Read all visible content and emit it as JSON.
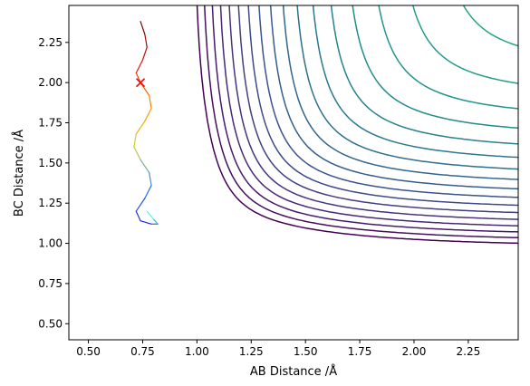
{
  "chart_data": {
    "type": "contour",
    "title": "",
    "xlabel": "AB Distance /Å",
    "ylabel": "BC Distance /Å",
    "xlim": [
      0.41,
      2.48
    ],
    "ylim": [
      0.4,
      2.48
    ],
    "xticks": [
      0.5,
      0.75,
      1.0,
      1.25,
      1.5,
      1.75,
      2.0,
      2.25
    ],
    "xtick_labels": [
      "0.50",
      "0.75",
      "1.00",
      "1.25",
      "1.50",
      "1.75",
      "2.00",
      "2.25"
    ],
    "yticks": [
      0.5,
      0.75,
      1.0,
      1.25,
      1.5,
      1.75,
      2.0,
      2.25
    ],
    "ytick_labels": [
      "0.50",
      "0.75",
      "1.00",
      "1.25",
      "1.50",
      "1.75",
      "2.00",
      "2.25"
    ],
    "grid": false,
    "colormap": "viridis",
    "contour_levels": 28,
    "start_marker": {
      "x": 0.74,
      "y": 2.0,
      "symbol": "x",
      "color": "#ff0000"
    },
    "trajectory": {
      "colormap": "rainbow",
      "points": [
        [
          0.74,
          2.38
        ],
        [
          0.76,
          2.3
        ],
        [
          0.77,
          2.22
        ],
        [
          0.75,
          2.14
        ],
        [
          0.72,
          2.06
        ],
        [
          0.74,
          2.0
        ],
        [
          0.78,
          1.92
        ],
        [
          0.79,
          1.84
        ],
        [
          0.76,
          1.76
        ],
        [
          0.72,
          1.68
        ],
        [
          0.71,
          1.6
        ],
        [
          0.74,
          1.52
        ],
        [
          0.78,
          1.44
        ],
        [
          0.79,
          1.36
        ],
        [
          0.76,
          1.28
        ],
        [
          0.72,
          1.2
        ],
        [
          0.74,
          1.14
        ],
        [
          0.79,
          1.12
        ],
        [
          0.82,
          1.12
        ],
        [
          0.8,
          1.15
        ],
        [
          0.77,
          1.2
        ]
      ]
    }
  }
}
